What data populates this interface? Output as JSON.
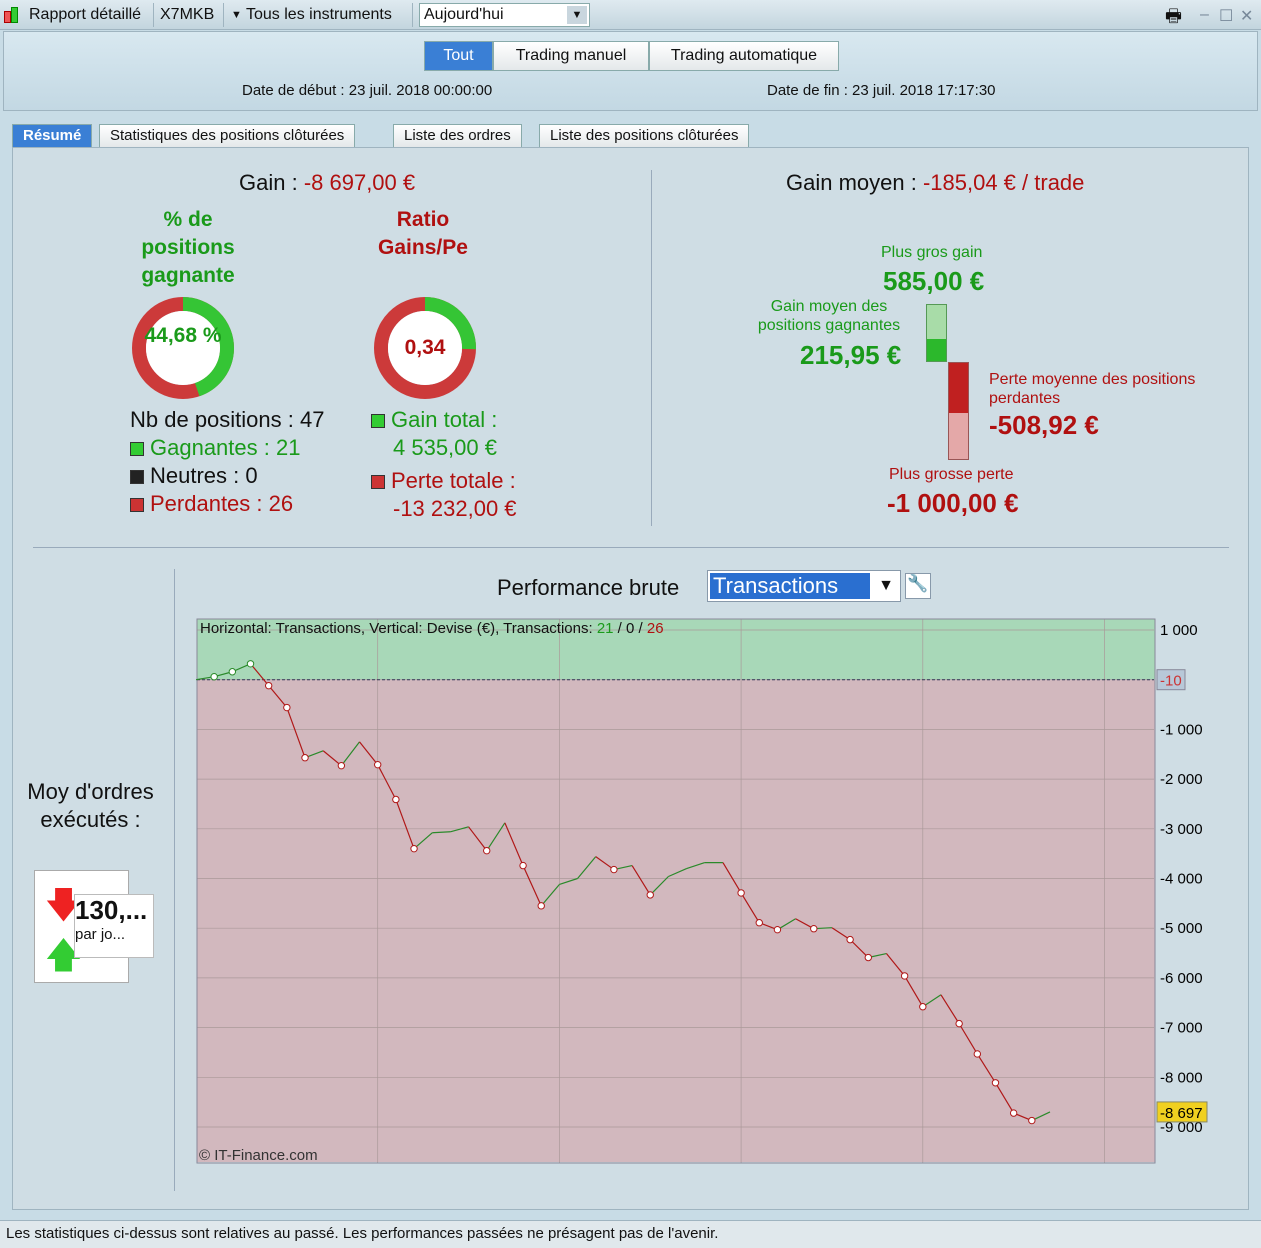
{
  "topbar": {
    "title": "Rapport détaillé",
    "account": "X7MKB",
    "instruments": "Tous les instruments",
    "period": "Aujourd'hui",
    "icons": [
      "candlestick-icon",
      "printer-icon",
      "minimize-icon",
      "maximize-icon",
      "close-icon"
    ]
  },
  "header": {
    "segments": [
      "Tout",
      "Trading manuel",
      "Trading automatique"
    ],
    "start_date": "Date de début : 23 juil. 2018 00:00:00",
    "end_date": "Date de fin : 23 juil. 2018 17:17:30"
  },
  "tabs": [
    "Résumé",
    "Statistiques des positions clôturées",
    "Liste des ordres",
    "Liste des positions clôturées"
  ],
  "summary": {
    "gain_label": "Gain : ",
    "gain_value": "-8 697,00 €",
    "win_pct_label": "% de positions gagnante",
    "win_pct": "44,68 %",
    "win_pct_value": 44.68,
    "ratio_label": "Ratio Gains/Pe",
    "ratio": "0,34",
    "ratio_value": 0.34,
    "nb_positions": "Nb de positions : 47",
    "gagnantes": "Gagnantes : 21",
    "neutres": "Neutres : 0",
    "perdantes": "Perdantes : 26",
    "gain_total_label": "Gain total :",
    "gain_total": "4 535,00 €",
    "perte_totale_label": "Perte totale :",
    "perte_totale": "-13 232,00 €",
    "gain_moyen_label": "Gain moyen : ",
    "gain_moyen": "-185,04 € / trade",
    "plus_gros_gain_label": "Plus gros gain",
    "plus_gros_gain": "585,00 €",
    "gain_moyen_gagnantes_label": "Gain moyen des positions gagnantes",
    "gain_moyen_gagnantes": "215,95 €",
    "perte_moyenne_label": "Perte moyenne des positions perdantes",
    "perte_moyenne": "-508,92 €",
    "plus_grosse_perte_label": "Plus grosse perte",
    "plus_grosse_perte": "-1 000,00 €",
    "moy_ordres_label": "Moy d'ordres exécutés :",
    "moy_ordres": "130,...",
    "par_jour": "par jo..."
  },
  "performance": {
    "title": "Performance brute",
    "mode": "Transactions",
    "info": "Horizontal: Transactions, Vertical: Devise (€), Transactions: ",
    "count_win": "21",
    "count_neutral": "0",
    "count_loss": "26",
    "copyright": "© IT-Finance.com",
    "zero_label": "-10",
    "last_label": "-8 697"
  },
  "chart_data": {
    "type": "line",
    "xlabel": "",
    "ylabel": "",
    "xlim": [
      0,
      53
    ],
    "ylim": [
      -9600,
      1000
    ],
    "x_ticks": [
      "10",
      "20",
      "30",
      "40",
      "50"
    ],
    "y_ticks": [
      "1 000",
      "-1 000",
      "-2 000",
      "-3 000",
      "-4 000",
      "-5 000",
      "-6 000",
      "-7 000",
      "-8 000",
      "-9 000"
    ],
    "y": [
      0,
      60,
      160,
      320,
      -120,
      -560,
      -1570,
      -1430,
      -1730,
      -1250,
      -1710,
      -2410,
      -3400,
      -3080,
      -3060,
      -2960,
      -3440,
      -2880,
      -3740,
      -4550,
      -4120,
      -4000,
      -3560,
      -3820,
      -3740,
      -4330,
      -3960,
      -3800,
      -3680,
      -3680,
      -4290,
      -4890,
      -5030,
      -4810,
      -5010,
      -4990,
      -5230,
      -5590,
      -5510,
      -5960,
      -6580,
      -6340,
      -6920,
      -7530,
      -8110,
      -8720,
      -8870,
      -8697
    ],
    "colors": {
      "gain": "#2a8a2a",
      "loss": "#b01818",
      "positive_zone": "#a8d8b8",
      "negative_zone": "#d2b8be"
    }
  },
  "footer": "Les statistiques ci-dessus sont relatives au passé. Les performances passées ne présagent pas de l'avenir."
}
